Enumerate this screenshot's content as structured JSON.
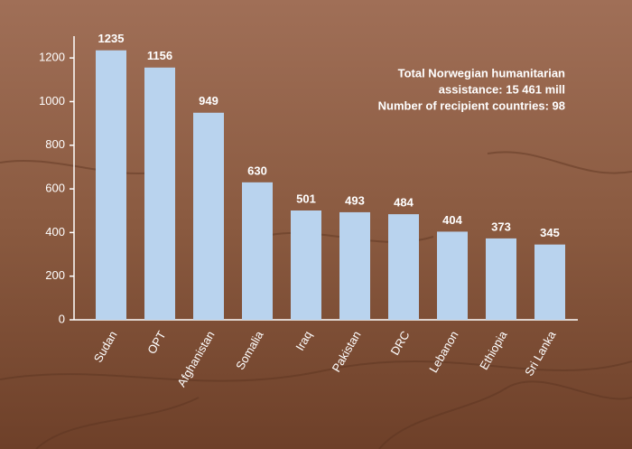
{
  "chart_data": {
    "type": "bar",
    "categories": [
      "Sudan",
      "OPT",
      "Afghanistan",
      "Somalia",
      "Iraq",
      "Pakistan",
      "DRC",
      "Lebanon",
      "Ethiopia",
      "Sri Lanka"
    ],
    "values": [
      1235,
      1156,
      949,
      630,
      501,
      493,
      484,
      404,
      373,
      345
    ],
    "color": "#b9d3ee",
    "ylim": [
      0,
      1300
    ],
    "yticks": [
      0,
      200,
      400,
      600,
      800,
      1000,
      1200
    ],
    "annotation": [
      "Total Norwegian humanitarian",
      "assistance: 15 461 mill",
      "Number of recipient countries: 98"
    ]
  }
}
